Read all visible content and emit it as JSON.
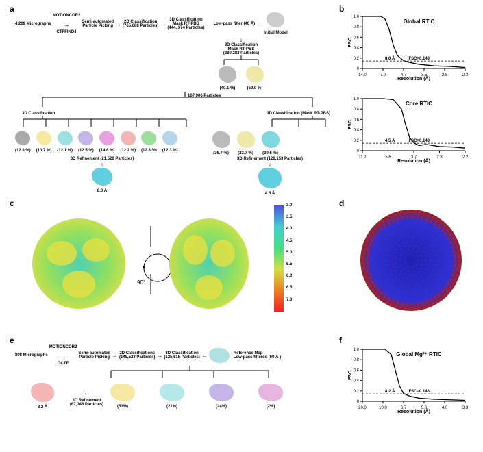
{
  "panels": {
    "a": "a",
    "b": "b",
    "c": "c",
    "d": "d",
    "e": "e",
    "f": "f"
  },
  "panelA": {
    "micrographs": "4,209 Micrographs",
    "step1_top": "MOTIONCOR2",
    "step1_bot": "CTFFIND4",
    "step2_top": "Semi-automated",
    "step2_bot": "Particle Picking",
    "step3_top": "2D Classification",
    "step3_bot": "(765,688 Particles)",
    "step4_top": "3D Classification",
    "step4_mid": "Mask RT-PBS",
    "step4_bot": "(444, 374 Particles)",
    "lowpass": "Low-pass filter (40 Å)",
    "initial": "Initial Model",
    "step5_top": "3D Classification",
    "step5_mid": "Mask RT-PBS",
    "step5_bot": "(280,283 Particles)",
    "pct_a": "(40.1 %)",
    "pct_b": "(59.9 %)",
    "mid_particles": "167,906 Particles",
    "left3d": "3D Classification",
    "right3d": "3D Classification (Mask RT-PBS)",
    "left_pcts": [
      "(12.8 %)",
      "(10.7 %)",
      "(12.1 %)",
      "(12.5 %)",
      "(14.6 %)",
      "(12.2 %)",
      "(12.8 %)",
      "(12.3 %)"
    ],
    "right_pcts": [
      "(36.7 %)",
      "(23.7 %)",
      "(39.6 %)"
    ],
    "refine_left": "3D Refinement (21,520 Particles)",
    "refine_right": "3D Refinement (128,153 Particles)",
    "res_left": "8.0 Å",
    "res_right": "4.5 Å",
    "colors": [
      "#aaaaaa",
      "#f5e8a0",
      "#9de0e0",
      "#c5b5e8",
      "#e8a0e0",
      "#f5b5b5",
      "#9de09d",
      "#b5d5e8"
    ]
  },
  "panelB": {
    "chart1": {
      "title": "Global RTIC",
      "ylabel": "FSC",
      "xlabel": "Resolution (Å)",
      "xticks": [
        "14.0",
        "7.0",
        "4.7",
        "3.5",
        "2.8",
        "2.3"
      ],
      "yticks": [
        "1.0",
        "0.8",
        "0.6",
        "0.4",
        "0.2",
        "0"
      ],
      "res_label": "8.0 Å",
      "fsc_label": "FSC=0.143",
      "curve_x": [
        0,
        0.18,
        0.22,
        0.26,
        0.3,
        0.34,
        0.4,
        0.45,
        0.55,
        0.7,
        0.85,
        1.0
      ],
      "curve_y": [
        1.0,
        1.0,
        0.95,
        0.75,
        0.45,
        0.25,
        0.15,
        0.12,
        0.08,
        0.05,
        0.04,
        0.02
      ]
    },
    "chart2": {
      "title": "Core RTIC",
      "ylabel": "FSC",
      "xlabel": "Resolution (Å)",
      "xticks": [
        "11.2",
        "5.6",
        "3.7",
        "2.8",
        "2.2"
      ],
      "yticks": [
        "1.0",
        "0.8",
        "0.6",
        "0.4",
        "0.2",
        "0"
      ],
      "res_label": "4.5 Å",
      "fsc_label": "FSC=0.143",
      "curve_x": [
        0,
        0.2,
        0.3,
        0.38,
        0.42,
        0.46,
        0.5,
        0.55,
        0.62,
        0.75,
        0.88,
        1.0
      ],
      "curve_y": [
        1.0,
        1.0,
        0.98,
        0.8,
        0.5,
        0.25,
        0.15,
        0.1,
        0.12,
        0.08,
        0.07,
        0.05
      ]
    }
  },
  "panelC": {
    "rotate": "90°",
    "colorbar_ticks": [
      "3.0",
      "3.5",
      "4.0",
      "4.5",
      "5.0",
      "5.5",
      "6.0",
      "6.5",
      "7.0"
    ],
    "gradient": [
      "#5050e0",
      "#40d0d0",
      "#40e080",
      "#d0e040",
      "#f08020",
      "#f02020"
    ]
  },
  "panelE": {
    "micrographs": "898 Micrographs",
    "step1_top": "MOTIONCOR2",
    "step1_bot": "GCTF",
    "step2_top": "Semi-automated",
    "step2_bot": "Particle Picking",
    "step3_top": "2D Classifications",
    "step3_bot": "(148,523 Particles)",
    "step4_top": "3D Classification",
    "step4_bot": "(125,615 Particles)",
    "refmap_top": "Reference Map",
    "refmap_bot": "Low-pass filtered (60 Å )",
    "refine_top": "3D Refinement",
    "refine_bot": "(67,346 Particles)",
    "res": "8.2 Å",
    "pcts": [
      "(53%)",
      "(21%)",
      "(24%)",
      "(2%)"
    ],
    "colors": [
      "#f5b5b5",
      "#f5e8a0",
      "#b5e8e8",
      "#c5b5e8",
      "#e8b5e0"
    ]
  },
  "panelF": {
    "title": "Global Mg²⁺ RTIC",
    "ylabel": "FSC",
    "xlabel": "Resolution (Å)",
    "xticks": [
      "20.0",
      "10.0",
      "6.7",
      "5.0",
      "4.0",
      "3.3"
    ],
    "yticks": [
      "1.0",
      "0.8",
      "0.6",
      "0.4",
      "0.2",
      "0"
    ],
    "res_label": "8.2 Å",
    "fsc_label": "FSC=0.143",
    "curve_x": [
      0,
      0.22,
      0.28,
      0.32,
      0.36,
      0.4,
      0.46,
      0.55,
      0.7,
      0.85,
      1.0
    ],
    "curve_y": [
      1.0,
      1.0,
      0.9,
      0.6,
      0.3,
      0.15,
      0.1,
      0.06,
      0.04,
      0.03,
      0.02
    ]
  }
}
